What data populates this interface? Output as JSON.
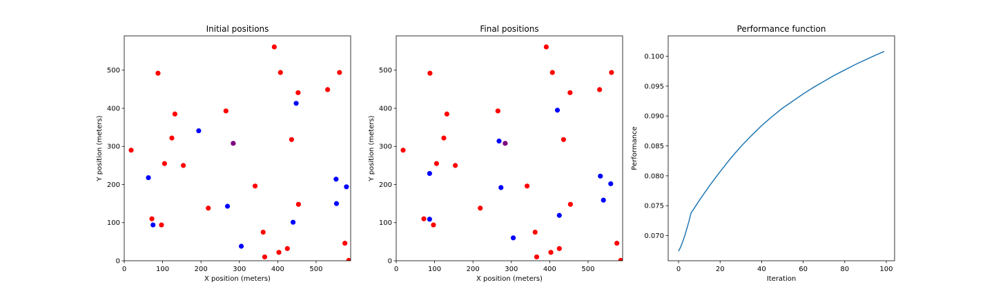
{
  "chart_data": [
    {
      "type": "scatter",
      "title": "Initial positions",
      "xlabel": "X position (meters)",
      "ylabel": "Y position (meters)",
      "xlim": [
        0,
        590
      ],
      "ylim": [
        0,
        590
      ],
      "xticks": [
        0,
        100,
        200,
        300,
        400,
        500
      ],
      "yticks": [
        0,
        100,
        200,
        300,
        400,
        500
      ],
      "grid": false,
      "series": [
        {
          "color": "#ff0000",
          "points": [
            [
              18,
              290
            ],
            [
              88,
              492
            ],
            [
              132,
              385
            ],
            [
              124,
              322
            ],
            [
              105,
              255
            ],
            [
              154,
              250
            ],
            [
              72,
              110
            ],
            [
              97,
              94
            ],
            [
              219,
              138
            ],
            [
              265,
              393
            ],
            [
              341,
              196
            ],
            [
              362,
              75
            ],
            [
              366,
              10
            ],
            [
              391,
              561
            ],
            [
              407,
              494
            ],
            [
              403,
              22
            ],
            [
              425,
              32
            ],
            [
              436,
              318
            ],
            [
              453,
              441
            ],
            [
              454,
              148
            ],
            [
              530,
              449
            ],
            [
              561,
              494
            ],
            [
              575,
              46
            ],
            [
              585,
              1
            ]
          ]
        },
        {
          "color": "#0000ff",
          "points": [
            [
              63,
              218
            ],
            [
              75,
              94
            ],
            [
              194,
              341
            ],
            [
              269,
              143
            ],
            [
              305,
              38
            ],
            [
              448,
              413
            ],
            [
              440,
              101
            ],
            [
              552,
              214
            ],
            [
              553,
              150
            ],
            [
              579,
              194
            ]
          ]
        },
        {
          "color": "#800080",
          "points": [
            [
              284,
              308
            ]
          ]
        }
      ]
    },
    {
      "type": "scatter",
      "title": "Final positions",
      "xlabel": "X position (meters)",
      "ylabel": "Y position (meters)",
      "xlim": [
        0,
        590
      ],
      "ylim": [
        0,
        590
      ],
      "xticks": [
        0,
        100,
        200,
        300,
        400,
        500
      ],
      "yticks": [
        0,
        100,
        200,
        300,
        400,
        500
      ],
      "grid": false,
      "series": [
        {
          "color": "#ff0000",
          "points": [
            [
              18,
              290
            ],
            [
              88,
              492
            ],
            [
              132,
              385
            ],
            [
              124,
              322
            ],
            [
              105,
              255
            ],
            [
              154,
              250
            ],
            [
              72,
              110
            ],
            [
              97,
              94
            ],
            [
              219,
              138
            ],
            [
              265,
              393
            ],
            [
              341,
              196
            ],
            [
              362,
              75
            ],
            [
              366,
              10
            ],
            [
              391,
              561
            ],
            [
              407,
              494
            ],
            [
              403,
              22
            ],
            [
              425,
              32
            ],
            [
              436,
              318
            ],
            [
              453,
              441
            ],
            [
              454,
              148
            ],
            [
              530,
              449
            ],
            [
              561,
              494
            ],
            [
              575,
              46
            ],
            [
              585,
              1
            ]
          ]
        },
        {
          "color": "#0000ff",
          "points": [
            [
              87,
              229
            ],
            [
              87,
              109
            ],
            [
              268,
              314
            ],
            [
              273,
              192
            ],
            [
              305,
              60
            ],
            [
              420,
              395
            ],
            [
              425,
              119
            ],
            [
              532,
              222
            ],
            [
              540,
              159
            ],
            [
              559,
              202
            ]
          ]
        },
        {
          "color": "#800080",
          "points": [
            [
              284,
              308
            ]
          ]
        }
      ]
    },
    {
      "type": "line",
      "title": "Performance function",
      "xlabel": "Iteration",
      "ylabel": "Performance",
      "xlim": [
        -5,
        104
      ],
      "ylim": [
        0.0658,
        0.1034
      ],
      "xticks": [
        0,
        20,
        40,
        60,
        80,
        100
      ],
      "yticks": [
        0.07,
        0.075,
        0.08,
        0.085,
        0.09,
        0.095,
        0.1
      ],
      "ytick_labels": [
        "0.070",
        "0.075",
        "0.080",
        "0.085",
        "0.090",
        "0.095",
        "0.100"
      ],
      "grid": false,
      "series": [
        {
          "color": "#1f77b4",
          "x": [
            0,
            1,
            2,
            3,
            4,
            5,
            6,
            7,
            10,
            15,
            20,
            25,
            30,
            35,
            40,
            45,
            50,
            55,
            60,
            65,
            70,
            75,
            80,
            85,
            90,
            95,
            99
          ],
          "y": [
            0.0674,
            0.0681,
            0.069,
            0.07,
            0.0712,
            0.0724,
            0.0738,
            0.0743,
            0.0759,
            0.0784,
            0.0807,
            0.0829,
            0.0849,
            0.0867,
            0.0884,
            0.0899,
            0.0913,
            0.0925,
            0.0937,
            0.0948,
            0.0958,
            0.0968,
            0.0977,
            0.0986,
            0.0994,
            0.1002,
            0.1008
          ]
        }
      ]
    }
  ]
}
